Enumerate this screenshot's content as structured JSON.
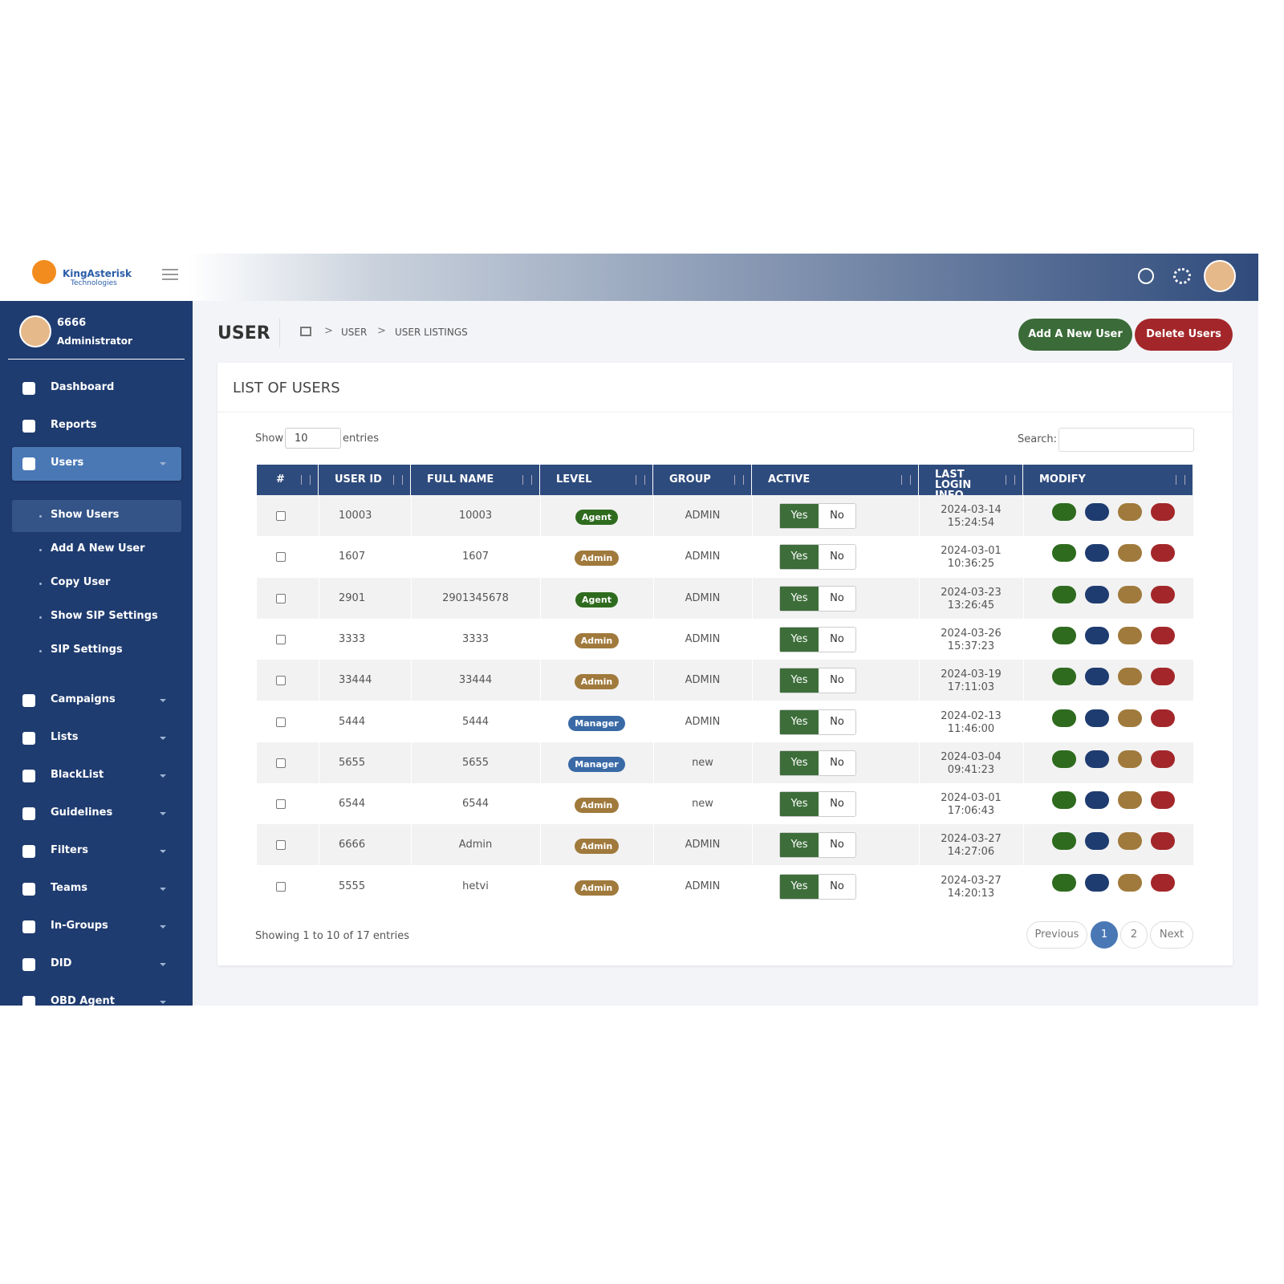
{
  "logo": {
    "name": "KingAsterisk",
    "sub": "Technologies"
  },
  "user": {
    "id": "6666",
    "role": "Administrator"
  },
  "sidebar": {
    "items": [
      {
        "label": "Dashboard"
      },
      {
        "label": "Reports"
      },
      {
        "label": "Users",
        "children": [
          "Show Users",
          "Add A New User",
          "Copy User",
          "Show SIP Settings",
          "SIP Settings"
        ]
      },
      {
        "label": "Campaigns"
      },
      {
        "label": "Lists"
      },
      {
        "label": "BlackList"
      },
      {
        "label": "Guidelines"
      },
      {
        "label": "Filters"
      },
      {
        "label": "Teams"
      },
      {
        "label": "In-Groups"
      },
      {
        "label": "DID"
      },
      {
        "label": "OBD Agent"
      }
    ]
  },
  "page": {
    "title": "USER",
    "breadcrumb": [
      "USER",
      "USER LISTINGS"
    ],
    "buttons": [
      "Add A New User",
      "Delete Users"
    ]
  },
  "card": {
    "title": "LIST OF USERS",
    "show": "Show",
    "entries_value": "10",
    "entries": "entries",
    "search": "Search:",
    "table": {
      "columns": [
        "#",
        "USER ID",
        "FULL NAME",
        "LEVEL",
        "GROUP",
        "ACTIVE",
        "LAST LOGIN INFO",
        "MODIFY"
      ],
      "yes": "Yes",
      "no": "No",
      "rows": [
        [
          "10003",
          "10003",
          "Agent",
          "ADMIN",
          "2024-03-14",
          "15:24:54"
        ],
        [
          "1607",
          "1607",
          "Admin",
          "ADMIN",
          "2024-03-01",
          "10:36:25"
        ],
        [
          "2901",
          "2901345678",
          "Agent",
          "ADMIN",
          "2024-03-23",
          "13:26:45"
        ],
        [
          "3333",
          "3333",
          "Admin",
          "ADMIN",
          "2024-03-26",
          "15:37:23"
        ],
        [
          "33444",
          "33444",
          "Admin",
          "ADMIN",
          "2024-03-19",
          "17:11:03"
        ],
        [
          "5444",
          "5444",
          "Manager",
          "ADMIN",
          "2024-02-13",
          "11:46:00"
        ],
        [
          "5655",
          "5655",
          "Manager",
          "new",
          "2024-03-04",
          "09:41:23"
        ],
        [
          "6544",
          "6544",
          "Admin",
          "new",
          "2024-03-01",
          "17:06:43"
        ],
        [
          "6666",
          "Admin",
          "Admin",
          "ADMIN",
          "2024-03-27",
          "14:27:06"
        ],
        [
          "5555",
          "hetvi",
          "Admin",
          "ADMIN",
          "2024-03-27",
          "14:20:13"
        ]
      ]
    },
    "footer": "Showing 1 to 10 of 17 entries",
    "pagination": [
      "Previous",
      "1",
      "2",
      "Next"
    ]
  }
}
